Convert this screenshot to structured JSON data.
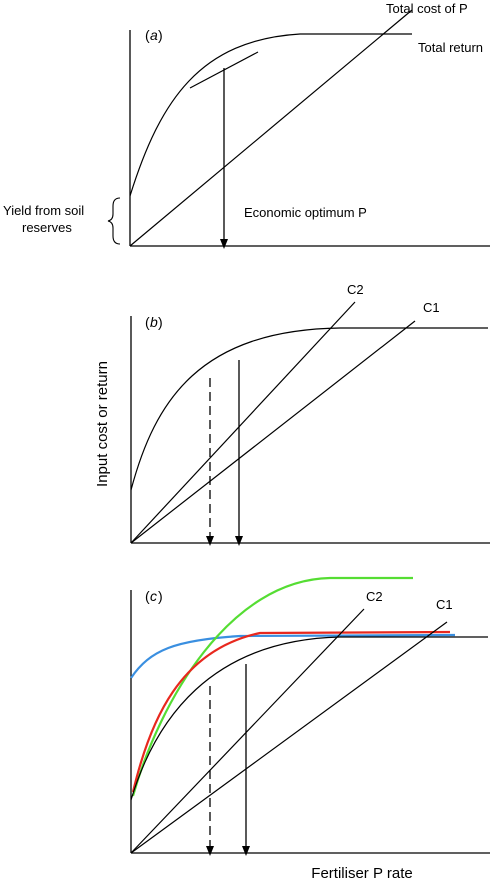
{
  "panel_a": {
    "letter": "a",
    "total_cost_label": "Total cost of P",
    "total_return_label": "Total return",
    "soil_label_line1": "Yield from soil",
    "soil_label_line2": "reserves",
    "optimum_label": "Economic optimum P"
  },
  "panel_b": {
    "letter": "b",
    "c2_label": "C2",
    "c1_label": "C1"
  },
  "panel_c": {
    "letter": "c",
    "c2_label": "C2",
    "c1_label": "C1"
  },
  "axes": {
    "y_title": "Input cost or return",
    "x_title": "Fertiliser P rate"
  },
  "colors": {
    "ink": "#000000",
    "green": "#55dd33",
    "red": "#e8281e",
    "blue": "#3a8fe0"
  }
}
